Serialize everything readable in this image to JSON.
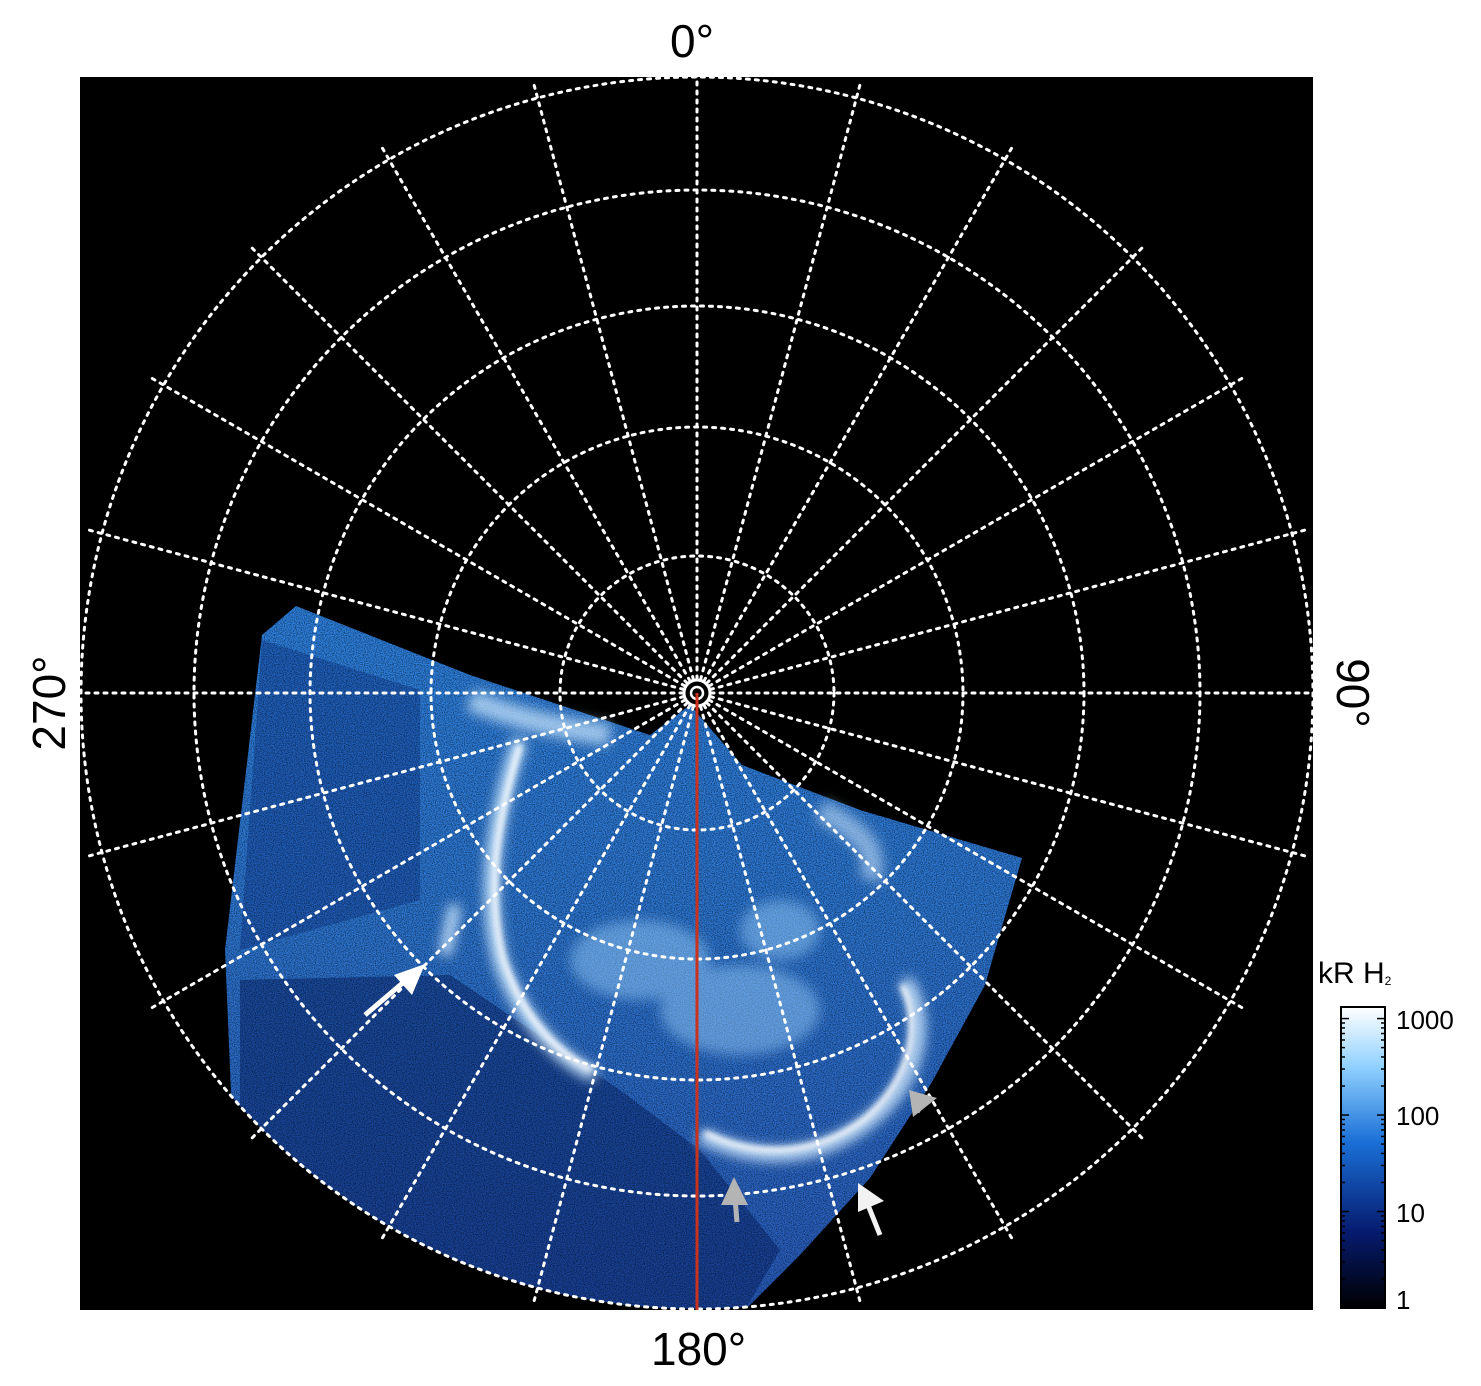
{
  "projection": {
    "longitude_labels": {
      "top": "0°",
      "right": "90°",
      "bottom": "180°",
      "left": "270°"
    },
    "grid": "dotted"
  },
  "colorbar": {
    "title_main": "kR H",
    "title_sub": "2",
    "scale": "log",
    "ticks": [
      "1000",
      "100",
      "10",
      "1"
    ],
    "colors": [
      "#000000",
      "#061a6e",
      "#1a6fd6",
      "#8fd0ff",
      "#ffffff"
    ]
  },
  "annotations": {
    "arrows": [
      {
        "name": "arrow-west-white",
        "color": "#ffffff"
      },
      {
        "name": "arrow-east-gray",
        "color": "#b4b4b4"
      },
      {
        "name": "arrow-south-gray",
        "color": "#b4b4b4"
      },
      {
        "name": "arrow-southeast-white",
        "color": "#f2f2f2"
      }
    ],
    "meridian_line_color": "#c8321e"
  },
  "colors": {
    "background": "#000000",
    "aurora": "#3a8de8",
    "grid": "#ffffff"
  }
}
